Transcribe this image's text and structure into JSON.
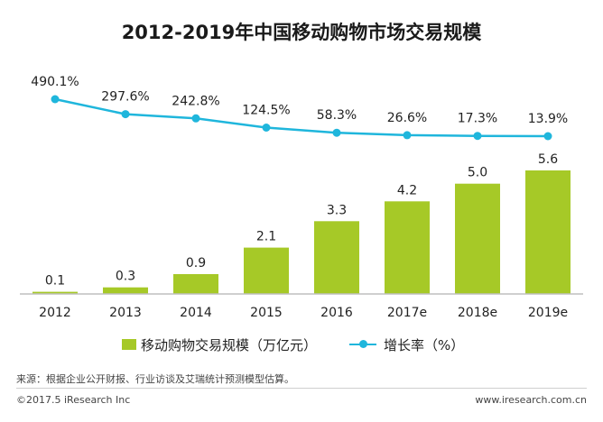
{
  "page": {
    "title": "2012-2019年中国移动购物市场交易规模",
    "source": "来源：根据企业公开财报、行业访谈及艾瑞统计预测模型估算。",
    "copyright": "©2017.5 iResearch Inc",
    "website": "www.iresearch.com.cn"
  },
  "legend": {
    "bar_label": "移动购物交易规模（万亿元）",
    "line_label": "增长率（%）"
  },
  "colors": {
    "bar": "#a6c927",
    "line": "#1fb6dc",
    "axis": "#bfbfbf"
  },
  "chart_data": {
    "type": "bar+line",
    "categories": [
      "2012",
      "2013",
      "2014",
      "2015",
      "2016",
      "2017e",
      "2018e",
      "2019e"
    ],
    "series": [
      {
        "name": "移动购物交易规模（万亿元）",
        "type": "bar",
        "values": [
          0.1,
          0.3,
          0.9,
          2.1,
          3.3,
          4.2,
          5.0,
          5.6
        ],
        "labels": [
          "0.1",
          "0.3",
          "0.9",
          "2.1",
          "3.3",
          "4.2",
          "5.0",
          "5.6"
        ]
      },
      {
        "name": "增长率（%）",
        "type": "line",
        "values": [
          490.1,
          297.6,
          242.8,
          124.5,
          58.3,
          26.6,
          17.3,
          13.9
        ],
        "labels": [
          "490.1%",
          "297.6%",
          "242.8%",
          "124.5%",
          "58.3%",
          "26.6%",
          "17.3%",
          "13.9%"
        ]
      }
    ],
    "title": "2012-2019年中国移动购物市场交易规模",
    "xlabel": "",
    "ylabel": "",
    "ylim_bar": [
      0,
      5.6
    ],
    "ylim_line": [
      0,
      490.1
    ],
    "grid": false,
    "legend_position": "bottom"
  }
}
